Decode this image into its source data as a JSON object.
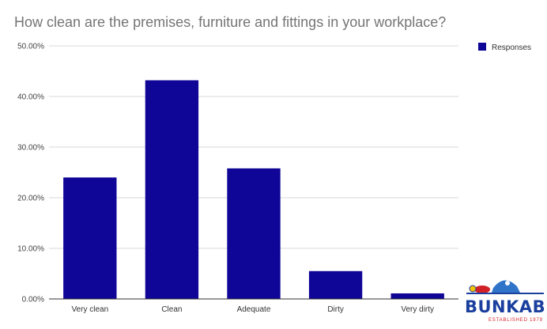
{
  "chart_data": {
    "type": "bar",
    "title": "How clean are the premises, furniture and fittings in your workplace?",
    "categories": [
      "Very clean",
      "Clean",
      "Adequate",
      "Dirty",
      "Very dirty"
    ],
    "series": [
      {
        "name": "Responses",
        "values": [
          24.0,
          43.2,
          25.8,
          5.5,
          1.1
        ],
        "color": "#0f0596"
      }
    ],
    "y_ticks": [
      "0.00%",
      "10.00%",
      "20.00%",
      "30.00%",
      "40.00%",
      "50.00%"
    ],
    "ylim": [
      0,
      50
    ],
    "grid": true,
    "legend_position": "top-right",
    "xlabel": "",
    "ylabel": ""
  },
  "logo": {
    "name": "BUNKABIN",
    "tagline": "ESTABLISHED 1979",
    "primary_color": "#1a3f9e",
    "accent_color": "#d22027"
  }
}
